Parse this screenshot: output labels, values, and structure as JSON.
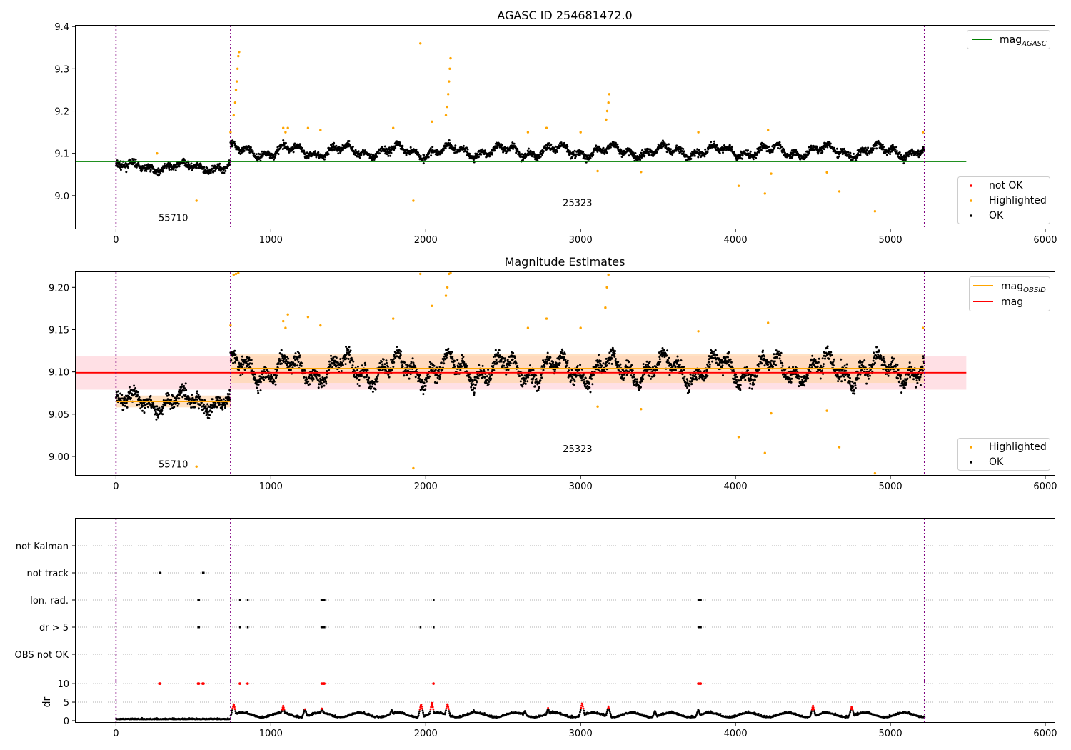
{
  "figure": {
    "background": "#ffffff"
  },
  "colors": {
    "ok": "#000000",
    "highlighted": "#ffa500",
    "not_ok": "#ff0000",
    "agasc_line": "#008000",
    "mag_line": "#ff0000",
    "obsid_line": "#ffa500",
    "obsid_band": "#ffd8b0",
    "mag_band": "#ffd6dc",
    "obsid_divider": "#800080",
    "grid": "#b0b0b0"
  },
  "chart_data": [
    {
      "id": "top",
      "type": "scatter",
      "title": "AGASC ID 254681472.0",
      "xlim": [
        -260,
        6060
      ],
      "ylim": [
        8.922,
        9.402
      ],
      "xticks": [
        0,
        1000,
        2000,
        3000,
        4000,
        5000,
        6000
      ],
      "yticks": [
        9.0,
        9.1,
        9.2,
        9.3,
        9.4
      ],
      "ytick_labels": [
        "9.0",
        "9.1",
        "9.2",
        "9.3",
        "9.4"
      ],
      "obsid_dividers": [
        0,
        740,
        5220
      ],
      "obsid_labels": [
        {
          "text": "55710",
          "x": 370,
          "y": 8.94
        },
        {
          "text": "25323",
          "x": 2980,
          "y": 8.975
        }
      ],
      "lines": [
        {
          "name": "mag_AGASC",
          "y": 9.081,
          "x": [
            -260,
            5490
          ],
          "color_key": "agasc_line"
        }
      ],
      "legend_lines": [
        {
          "label": "mag",
          "sub": "AGASC",
          "color_key": "agasc_line",
          "position": "top-right"
        }
      ],
      "legend_points": [
        {
          "label": "not OK",
          "color_key": "not_ok"
        },
        {
          "label": "Highlighted",
          "color_key": "highlighted"
        },
        {
          "label": "OK",
          "color_key": "ok"
        }
      ],
      "segments": [
        {
          "x0": 0,
          "x1": 740,
          "base": 9.068,
          "amp": 0.012
        },
        {
          "x0": 740,
          "x1": 5220,
          "base": 9.105,
          "amp": 0.018
        }
      ],
      "highlighted_points": [
        [
          265,
          9.1
        ],
        [
          520,
          8.988
        ],
        [
          740,
          9.15
        ],
        [
          760,
          9.19
        ],
        [
          770,
          9.22
        ],
        [
          775,
          9.25
        ],
        [
          780,
          9.27
        ],
        [
          785,
          9.3
        ],
        [
          790,
          9.33
        ],
        [
          795,
          9.34
        ],
        [
          1080,
          9.16
        ],
        [
          1095,
          9.15
        ],
        [
          1110,
          9.16
        ],
        [
          1240,
          9.16
        ],
        [
          1320,
          9.155
        ],
        [
          1790,
          9.16
        ],
        [
          1920,
          8.988
        ],
        [
          1965,
          9.36
        ],
        [
          2040,
          9.175
        ],
        [
          2130,
          9.19
        ],
        [
          2138,
          9.21
        ],
        [
          2145,
          9.24
        ],
        [
          2150,
          9.27
        ],
        [
          2155,
          9.3
        ],
        [
          2160,
          9.325
        ],
        [
          2660,
          9.15
        ],
        [
          2780,
          9.16
        ],
        [
          3000,
          9.15
        ],
        [
          3110,
          9.058
        ],
        [
          3165,
          9.18
        ],
        [
          3172,
          9.2
        ],
        [
          3180,
          9.22
        ],
        [
          3185,
          9.24
        ],
        [
          3390,
          9.056
        ],
        [
          3760,
          9.15
        ],
        [
          4020,
          9.023
        ],
        [
          4190,
          9.005
        ],
        [
          4210,
          9.155
        ],
        [
          4230,
          9.052
        ],
        [
          4590,
          9.055
        ],
        [
          4670,
          9.01
        ],
        [
          4900,
          8.963
        ],
        [
          5210,
          9.15
        ]
      ]
    },
    {
      "id": "middle",
      "type": "scatter",
      "title": "Magnitude Estimates",
      "xlim": [
        -260,
        6060
      ],
      "ylim": [
        8.978,
        9.218
      ],
      "xticks": [
        0,
        1000,
        2000,
        3000,
        4000,
        5000,
        6000
      ],
      "yticks": [
        9.0,
        9.05,
        9.1,
        9.15,
        9.2
      ],
      "ytick_labels": [
        "9.00",
        "9.05",
        "9.10",
        "9.15",
        "9.20"
      ],
      "obsid_dividers": [
        0,
        740,
        5220
      ],
      "obsid_labels": [
        {
          "text": "55710",
          "x": 370,
          "y": 8.987
        },
        {
          "text": "25323",
          "x": 2980,
          "y": 9.005
        }
      ],
      "lines": [
        {
          "name": "mag",
          "y": 9.099,
          "x": [
            -260,
            5490
          ],
          "color_key": "mag_line"
        },
        {
          "name": "mag_OBSID_55710",
          "y": 9.065,
          "x": [
            0,
            740
          ],
          "color_key": "obsid_line"
        },
        {
          "name": "mag_OBSID_25323",
          "y": 9.104,
          "x": [
            740,
            5220
          ],
          "color_key": "obsid_line"
        }
      ],
      "bands": [
        {
          "x": [
            -260,
            5490
          ],
          "y": [
            9.079,
            9.119
          ],
          "color_key": "mag_band"
        },
        {
          "x": [
            0,
            740
          ],
          "y": [
            9.058,
            9.072
          ],
          "color_key": "obsid_band"
        },
        {
          "x": [
            740,
            5220
          ],
          "y": [
            9.087,
            9.121
          ],
          "color_key": "obsid_band"
        }
      ],
      "legend_lines": [
        {
          "label": "mag",
          "sub": "OBSID",
          "color_key": "obsid_line"
        },
        {
          "label": "mag",
          "sub": "",
          "color_key": "mag_line"
        }
      ],
      "legend_points": [
        {
          "label": "Highlighted",
          "color_key": "highlighted"
        },
        {
          "label": "OK",
          "color_key": "ok"
        }
      ],
      "segments": [
        {
          "x0": 0,
          "x1": 740,
          "base": 9.065,
          "amp": 0.013
        },
        {
          "x0": 740,
          "x1": 5220,
          "base": 9.103,
          "amp": 0.02
        }
      ],
      "highlighted_points": [
        [
          520,
          8.988
        ],
        [
          740,
          9.155
        ],
        [
          760,
          9.215
        ],
        [
          775,
          9.216
        ],
        [
          790,
          9.217
        ],
        [
          1080,
          9.16
        ],
        [
          1095,
          9.152
        ],
        [
          1110,
          9.168
        ],
        [
          1240,
          9.165
        ],
        [
          1320,
          9.155
        ],
        [
          1790,
          9.163
        ],
        [
          1920,
          8.986
        ],
        [
          1965,
          9.216
        ],
        [
          2040,
          9.178
        ],
        [
          2130,
          9.19
        ],
        [
          2140,
          9.2
        ],
        [
          2150,
          9.216
        ],
        [
          2160,
          9.217
        ],
        [
          2660,
          9.152
        ],
        [
          2780,
          9.163
        ],
        [
          3000,
          9.152
        ],
        [
          3110,
          9.059
        ],
        [
          3160,
          9.176
        ],
        [
          3170,
          9.2
        ],
        [
          3180,
          9.215
        ],
        [
          3390,
          9.056
        ],
        [
          3760,
          9.148
        ],
        [
          4020,
          9.023
        ],
        [
          4190,
          9.004
        ],
        [
          4210,
          9.158
        ],
        [
          4230,
          9.051
        ],
        [
          4590,
          9.054
        ],
        [
          4670,
          9.011
        ],
        [
          4900,
          8.98
        ],
        [
          5210,
          9.152
        ]
      ]
    },
    {
      "id": "flags",
      "type": "scatter",
      "xlim": [
        -260,
        6060
      ],
      "categories": [
        "not Kalman",
        "not track",
        "Ion. rad.",
        "dr > 5",
        "OBS not OK"
      ],
      "obsid_dividers": [
        0,
        740,
        5220
      ],
      "flag_points": {
        "not track": [
          280,
          285,
          560,
          565
        ],
        "Ion. rad.": [
          530,
          535,
          800,
          850,
          1330,
          1335,
          1340,
          1345,
          2050,
          3760,
          3765,
          3770,
          3775
        ],
        "dr > 5": [
          530,
          535,
          800,
          850,
          1330,
          1335,
          1340,
          1345,
          1965,
          2050,
          3760,
          3765,
          3770,
          3775
        ]
      }
    },
    {
      "id": "dr",
      "type": "scatter",
      "ylabel": "dr",
      "xlim": [
        -260,
        6060
      ],
      "ylim": [
        -0.4,
        10.6
      ],
      "xticks": [
        0,
        1000,
        2000,
        3000,
        4000,
        5000,
        6000
      ],
      "yticks": [
        0,
        5,
        10
      ],
      "obsid_dividers": [
        0,
        740,
        5220
      ],
      "dr_high_points": [
        [
          280,
          10
        ],
        [
          285,
          10
        ],
        [
          530,
          10
        ],
        [
          535,
          10
        ],
        [
          560,
          10
        ],
        [
          565,
          10
        ],
        [
          800,
          10
        ],
        [
          850,
          10
        ],
        [
          1330,
          10
        ],
        [
          1340,
          10
        ],
        [
          1345,
          10
        ],
        [
          2050,
          10
        ],
        [
          3760,
          10
        ],
        [
          3770,
          10
        ],
        [
          3775,
          10
        ]
      ],
      "dr_peaks": [
        {
          "x": 760,
          "h": 4.6
        },
        {
          "x": 1080,
          "h": 4.0
        },
        {
          "x": 1220,
          "h": 3.2
        },
        {
          "x": 1330,
          "h": 3.4
        },
        {
          "x": 1780,
          "h": 3.0
        },
        {
          "x": 1970,
          "h": 4.5
        },
        {
          "x": 2040,
          "h": 4.8
        },
        {
          "x": 2140,
          "h": 4.6
        },
        {
          "x": 2310,
          "h": 2.8
        },
        {
          "x": 2640,
          "h": 2.6
        },
        {
          "x": 2790,
          "h": 3.4
        },
        {
          "x": 3010,
          "h": 4.8
        },
        {
          "x": 3180,
          "h": 3.8
        },
        {
          "x": 3480,
          "h": 2.6
        },
        {
          "x": 3760,
          "h": 3.0
        },
        {
          "x": 4500,
          "h": 4.0
        },
        {
          "x": 4750,
          "h": 3.8
        }
      ]
    }
  ]
}
